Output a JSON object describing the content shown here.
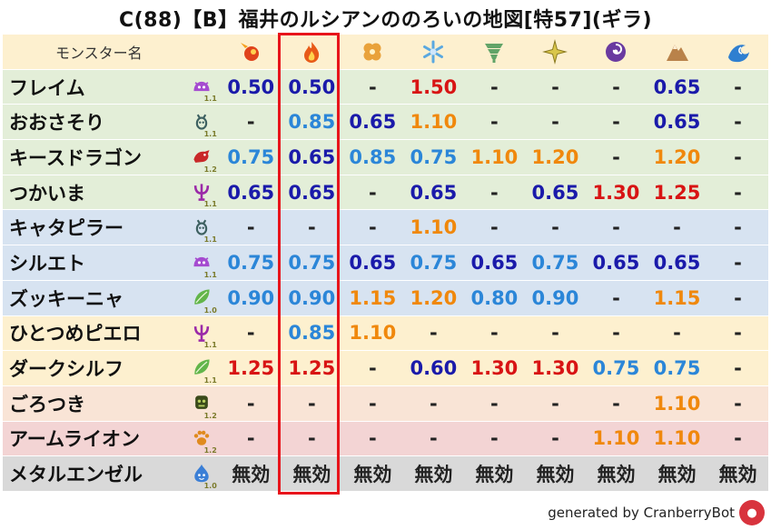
{
  "title": "C(88)【B】福井のルシアンののろいの地図[特57](ギラ)",
  "header": {
    "label": "モンスター名"
  },
  "elements": [
    {
      "icon": "fire-ball-icon",
      "color": "#e0431c"
    },
    {
      "icon": "flame-icon",
      "color": "#e85a18"
    },
    {
      "icon": "clover-icon",
      "color": "#e9a23b"
    },
    {
      "icon": "snowflake-icon",
      "color": "#5aa8e0"
    },
    {
      "icon": "tornado-icon",
      "color": "#62a468"
    },
    {
      "icon": "sparkle-icon",
      "color": "#d9c64a"
    },
    {
      "icon": "dark-swirl-icon",
      "color": "#6a3aa0"
    },
    {
      "icon": "mountain-icon",
      "color": "#b9824a"
    },
    {
      "icon": "wave-icon",
      "color": "#2f7fd0"
    }
  ],
  "colors": {
    "red": "#d81414",
    "navy": "#1a1aaa",
    "blue": "#2b86d8",
    "orange": "#f0880c",
    "dash": "#222222"
  },
  "rows": [
    {
      "name": "フレイム",
      "bg": "#e3eed8",
      "icon": "purple-slime-icon",
      "icon_color": "#a54bd0",
      "level": "1.1",
      "cells": [
        {
          "v": "0.50",
          "c": "navy"
        },
        {
          "v": "0.50",
          "c": "navy"
        },
        {
          "v": "-",
          "c": "dash"
        },
        {
          "v": "1.50",
          "c": "red"
        },
        {
          "v": "-",
          "c": "dash"
        },
        {
          "v": "-",
          "c": "dash"
        },
        {
          "v": "-",
          "c": "dash"
        },
        {
          "v": "0.65",
          "c": "navy"
        },
        {
          "v": "-",
          "c": "dash"
        }
      ]
    },
    {
      "name": "おおさそり",
      "bg": "#e3eed8",
      "icon": "insect-icon",
      "icon_color": "#3d6060",
      "level": "1.1",
      "cells": [
        {
          "v": "-",
          "c": "dash"
        },
        {
          "v": "0.85",
          "c": "blue"
        },
        {
          "v": "0.65",
          "c": "navy"
        },
        {
          "v": "1.10",
          "c": "orange"
        },
        {
          "v": "-",
          "c": "dash"
        },
        {
          "v": "-",
          "c": "dash"
        },
        {
          "v": "-",
          "c": "dash"
        },
        {
          "v": "0.65",
          "c": "navy"
        },
        {
          "v": "-",
          "c": "dash"
        }
      ]
    },
    {
      "name": "キースドラゴン",
      "bg": "#e3eed8",
      "icon": "dragon-icon",
      "icon_color": "#c92828",
      "level": "1.2",
      "cells": [
        {
          "v": "0.75",
          "c": "blue"
        },
        {
          "v": "0.65",
          "c": "navy"
        },
        {
          "v": "0.85",
          "c": "blue"
        },
        {
          "v": "0.75",
          "c": "blue"
        },
        {
          "v": "1.10",
          "c": "orange"
        },
        {
          "v": "1.20",
          "c": "orange"
        },
        {
          "v": "-",
          "c": "dash"
        },
        {
          "v": "1.20",
          "c": "orange"
        },
        {
          "v": "-",
          "c": "dash"
        }
      ]
    },
    {
      "name": "つかいま",
      "bg": "#e3eed8",
      "icon": "demon-icon",
      "icon_color": "#9b2aa8",
      "level": "1.1",
      "cells": [
        {
          "v": "0.65",
          "c": "navy"
        },
        {
          "v": "0.65",
          "c": "navy"
        },
        {
          "v": "-",
          "c": "dash"
        },
        {
          "v": "0.65",
          "c": "navy"
        },
        {
          "v": "-",
          "c": "dash"
        },
        {
          "v": "0.65",
          "c": "navy"
        },
        {
          "v": "1.30",
          "c": "red"
        },
        {
          "v": "1.25",
          "c": "red"
        },
        {
          "v": "-",
          "c": "dash"
        }
      ]
    },
    {
      "name": "キャタピラー",
      "bg": "#d7e3f1",
      "icon": "insect-icon",
      "icon_color": "#3d6060",
      "level": "1.1",
      "cells": [
        {
          "v": "-",
          "c": "dash"
        },
        {
          "v": "-",
          "c": "dash"
        },
        {
          "v": "-",
          "c": "dash"
        },
        {
          "v": "1.10",
          "c": "orange"
        },
        {
          "v": "-",
          "c": "dash"
        },
        {
          "v": "-",
          "c": "dash"
        },
        {
          "v": "-",
          "c": "dash"
        },
        {
          "v": "-",
          "c": "dash"
        },
        {
          "v": "-",
          "c": "dash"
        }
      ]
    },
    {
      "name": "シルエト",
      "bg": "#d7e3f1",
      "icon": "purple-slime-icon",
      "icon_color": "#a54bd0",
      "level": "1.1",
      "cells": [
        {
          "v": "0.75",
          "c": "blue"
        },
        {
          "v": "0.75",
          "c": "blue"
        },
        {
          "v": "0.65",
          "c": "navy"
        },
        {
          "v": "0.75",
          "c": "blue"
        },
        {
          "v": "0.65",
          "c": "navy"
        },
        {
          "v": "0.75",
          "c": "blue"
        },
        {
          "v": "0.65",
          "c": "navy"
        },
        {
          "v": "0.65",
          "c": "navy"
        },
        {
          "v": "-",
          "c": "dash"
        }
      ]
    },
    {
      "name": "ズッキーニャ",
      "bg": "#d7e3f1",
      "icon": "leaf-icon",
      "icon_color": "#62b54a",
      "level": "1.0",
      "cells": [
        {
          "v": "0.90",
          "c": "blue"
        },
        {
          "v": "0.90",
          "c": "blue"
        },
        {
          "v": "1.15",
          "c": "orange"
        },
        {
          "v": "1.20",
          "c": "orange"
        },
        {
          "v": "0.80",
          "c": "blue"
        },
        {
          "v": "0.90",
          "c": "blue"
        },
        {
          "v": "-",
          "c": "dash"
        },
        {
          "v": "1.15",
          "c": "orange"
        },
        {
          "v": "-",
          "c": "dash"
        }
      ]
    },
    {
      "name": "ひとつめピエロ",
      "bg": "#fdf0cf",
      "icon": "demon-icon",
      "icon_color": "#9b2aa8",
      "level": "1.1",
      "cells": [
        {
          "v": "-",
          "c": "dash"
        },
        {
          "v": "0.85",
          "c": "blue"
        },
        {
          "v": "1.10",
          "c": "orange"
        },
        {
          "v": "-",
          "c": "dash"
        },
        {
          "v": "-",
          "c": "dash"
        },
        {
          "v": "-",
          "c": "dash"
        },
        {
          "v": "-",
          "c": "dash"
        },
        {
          "v": "-",
          "c": "dash"
        },
        {
          "v": "-",
          "c": "dash"
        }
      ]
    },
    {
      "name": "ダークシルフ",
      "bg": "#fdf0cf",
      "icon": "leaf-icon",
      "icon_color": "#62b54a",
      "level": "1.1",
      "cells": [
        {
          "v": "1.25",
          "c": "red"
        },
        {
          "v": "1.25",
          "c": "red"
        },
        {
          "v": "-",
          "c": "dash"
        },
        {
          "v": "0.60",
          "c": "navy"
        },
        {
          "v": "1.30",
          "c": "red"
        },
        {
          "v": "1.30",
          "c": "red"
        },
        {
          "v": "0.75",
          "c": "blue"
        },
        {
          "v": "0.75",
          "c": "blue"
        },
        {
          "v": "-",
          "c": "dash"
        }
      ]
    },
    {
      "name": "ごろつき",
      "bg": "#f9e4d6",
      "icon": "zombie-icon",
      "icon_color": "#3a4a1a",
      "level": "1.2",
      "cells": [
        {
          "v": "-",
          "c": "dash"
        },
        {
          "v": "-",
          "c": "dash"
        },
        {
          "v": "-",
          "c": "dash"
        },
        {
          "v": "-",
          "c": "dash"
        },
        {
          "v": "-",
          "c": "dash"
        },
        {
          "v": "-",
          "c": "dash"
        },
        {
          "v": "-",
          "c": "dash"
        },
        {
          "v": "1.10",
          "c": "orange"
        },
        {
          "v": "-",
          "c": "dash"
        }
      ]
    },
    {
      "name": "アームライオン",
      "bg": "#f3d4d4",
      "icon": "paw-icon",
      "icon_color": "#e08a1e",
      "level": "1.2",
      "cells": [
        {
          "v": "-",
          "c": "dash"
        },
        {
          "v": "-",
          "c": "dash"
        },
        {
          "v": "-",
          "c": "dash"
        },
        {
          "v": "-",
          "c": "dash"
        },
        {
          "v": "-",
          "c": "dash"
        },
        {
          "v": "-",
          "c": "dash"
        },
        {
          "v": "1.10",
          "c": "orange"
        },
        {
          "v": "1.10",
          "c": "orange"
        },
        {
          "v": "-",
          "c": "dash"
        }
      ]
    },
    {
      "name": "メタルエンゼル",
      "bg": "#d9d9d9",
      "icon": "slime-icon",
      "icon_color": "#3b7fd6",
      "level": "1.0",
      "cells": [
        {
          "v": "無効",
          "c": "dash"
        },
        {
          "v": "無効",
          "c": "dash"
        },
        {
          "v": "無効",
          "c": "dash"
        },
        {
          "v": "無効",
          "c": "dash"
        },
        {
          "v": "無効",
          "c": "dash"
        },
        {
          "v": "無効",
          "c": "dash"
        },
        {
          "v": "無効",
          "c": "dash"
        },
        {
          "v": "無効",
          "c": "dash"
        },
        {
          "v": "無効",
          "c": "dash"
        }
      ]
    }
  ],
  "footer": "generated by CranberryBot"
}
